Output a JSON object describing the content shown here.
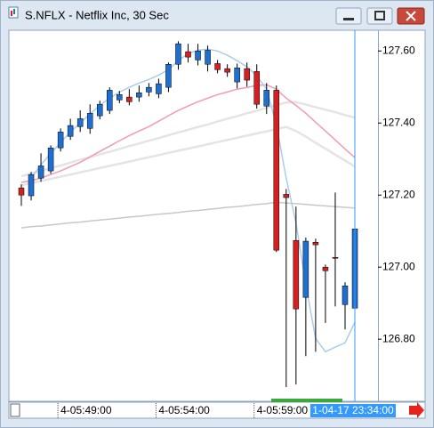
{
  "chart_data": {
    "type": "candlestick",
    "title": "S.NFLX - Netflix Inc, 30 Sec",
    "categories": [
      null,
      null,
      null,
      null,
      "4-05:49:00",
      null,
      null,
      null,
      null,
      null,
      null,
      null,
      null,
      null,
      "4-05:54:00",
      null,
      null,
      null,
      null,
      null,
      null,
      null,
      null,
      null,
      "4-05:59:00",
      null,
      null,
      null,
      null,
      null,
      null,
      null,
      null,
      null,
      null
    ],
    "open": [
      127.22,
      127.198,
      127.247,
      127.267,
      127.331,
      127.363,
      127.39,
      127.385,
      127.42,
      127.435,
      127.464,
      127.472,
      127.472,
      127.486,
      127.481,
      127.499,
      127.563,
      127.598,
      127.575,
      127.563,
      127.565,
      127.551,
      127.514,
      127.551,
      127.543,
      127.447,
      127.491,
      127.202,
      127.074,
      126.916,
      127.069,
      127.0,
      127.027,
      126.896,
      126.886
    ],
    "high": [
      127.23,
      127.264,
      127.316,
      127.338,
      127.385,
      127.412,
      127.435,
      127.452,
      127.462,
      127.499,
      127.489,
      127.494,
      127.504,
      127.511,
      127.523,
      127.568,
      127.627,
      127.62,
      127.62,
      127.615,
      127.575,
      127.563,
      127.565,
      127.568,
      127.563,
      127.511,
      127.504,
      127.217,
      127.168,
      127.082,
      127.079,
      127.007,
      127.207,
      126.958,
      127.111
    ],
    "low": [
      127.17,
      127.185,
      127.237,
      127.259,
      127.321,
      127.353,
      127.375,
      127.37,
      127.41,
      127.425,
      127.455,
      127.449,
      127.459,
      127.474,
      127.469,
      127.486,
      127.548,
      127.568,
      127.56,
      127.543,
      127.538,
      127.528,
      127.496,
      127.501,
      127.44,
      127.425,
      127.042,
      126.667,
      126.674,
      126.753,
      126.765,
      126.845,
      126.891,
      126.827,
      126.884
    ],
    "close": [
      127.2,
      127.257,
      127.281,
      127.331,
      127.375,
      127.393,
      127.412,
      127.427,
      127.452,
      127.491,
      127.479,
      127.459,
      127.484,
      127.499,
      127.509,
      127.563,
      127.62,
      127.583,
      127.6,
      127.602,
      127.548,
      127.541,
      127.553,
      127.519,
      127.452,
      127.491,
      127.047,
      127.193,
      126.884,
      127.072,
      127.062,
      126.99,
      127.025,
      126.948,
      127.106
    ],
    "up_color": "#1f6fd0",
    "down_color": "#d42020",
    "overlays": [
      {
        "color": "#e4e4e4",
        "values": [
          127.252,
          127.26,
          127.267,
          127.275,
          127.282,
          127.29,
          127.298,
          127.305,
          127.313,
          127.32,
          127.328,
          127.336,
          127.343,
          127.351,
          127.358,
          127.366,
          127.374,
          127.381,
          127.389,
          127.396,
          127.404,
          127.412,
          127.419,
          127.427,
          127.434,
          127.442,
          127.45,
          127.457,
          127.458,
          127.451,
          127.444,
          127.437,
          127.43,
          127.422,
          127.415
        ]
      },
      {
        "color": "#e4e4e4",
        "values": [
          127.227,
          127.233,
          127.239,
          127.245,
          127.251,
          127.257,
          127.263,
          127.269,
          127.275,
          127.281,
          127.287,
          127.293,
          127.299,
          127.305,
          127.311,
          127.317,
          127.323,
          127.329,
          127.335,
          127.341,
          127.347,
          127.353,
          127.359,
          127.365,
          127.371,
          127.377,
          127.383,
          127.389,
          127.378,
          127.362,
          127.345,
          127.329,
          127.312,
          127.296,
          127.279
        ]
      },
      {
        "color": "#c8c8c8",
        "values": [
          127.109,
          127.112,
          127.114,
          127.117,
          127.12,
          127.123,
          127.125,
          127.128,
          127.131,
          127.133,
          127.136,
          127.139,
          127.141,
          127.144,
          127.147,
          127.149,
          127.152,
          127.155,
          127.157,
          127.16,
          127.163,
          127.166,
          127.168,
          127.171,
          127.174,
          127.176,
          127.18,
          127.178,
          127.176,
          127.174,
          127.172,
          127.17,
          127.168,
          127.166,
          127.164
        ]
      },
      {
        "color": "#f29ab8",
        "values": [
          127.235,
          127.24,
          127.247,
          127.257,
          127.267,
          127.279,
          127.291,
          127.306,
          127.321,
          127.336,
          127.351,
          127.365,
          127.378,
          127.39,
          127.405,
          127.42,
          127.435,
          127.447,
          127.459,
          127.469,
          127.479,
          127.486,
          127.494,
          127.499,
          127.504,
          127.506,
          127.494,
          127.469,
          127.449,
          127.427,
          127.402,
          127.378,
          127.353,
          127.328,
          127.304
        ]
      },
      {
        "color": "#a8cdee",
        "values": [
          null,
          127.247,
          127.284,
          127.316,
          127.346,
          127.375,
          127.4,
          127.425,
          127.449,
          127.469,
          127.486,
          127.499,
          127.511,
          127.521,
          127.533,
          127.548,
          127.573,
          127.593,
          127.602,
          127.605,
          127.6,
          127.588,
          127.573,
          127.556,
          127.531,
          127.494,
          127.395,
          127.247,
          127.123,
          126.951,
          126.802,
          126.765,
          126.778,
          126.79,
          126.847
        ]
      }
    ],
    "ylim": [
      126.63,
      127.655
    ],
    "yticks": [
      {
        "value": 126.8,
        "label": "126.80"
      },
      {
        "value": 127.0,
        "label": "127.00"
      },
      {
        "value": 127.2,
        "label": "127.20"
      },
      {
        "value": 127.4,
        "label": "127.40"
      },
      {
        "value": 127.6,
        "label": "127.60"
      }
    ],
    "cursor_label": "1-04-17 23:34:00"
  }
}
